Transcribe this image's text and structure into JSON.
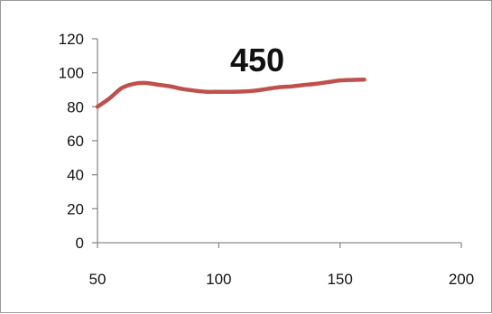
{
  "chart_data": {
    "type": "line",
    "title": "450",
    "xlabel": "",
    "ylabel": "",
    "xlim": [
      50,
      200
    ],
    "ylim": [
      0,
      120
    ],
    "xticks": [
      50,
      100,
      150,
      200
    ],
    "yticks": [
      0,
      20,
      40,
      60,
      80,
      100,
      120
    ],
    "grid": false,
    "legend": "none",
    "series": [
      {
        "color": "#c0504d",
        "x": [
          50,
          55,
          60,
          65,
          70,
          75,
          80,
          85,
          90,
          95,
          100,
          105,
          110,
          115,
          120,
          125,
          130,
          135,
          140,
          145,
          150,
          155,
          160
        ],
        "y": [
          80,
          85,
          91,
          93.5,
          94,
          93,
          92,
          90.5,
          89.5,
          88.8,
          88.8,
          88.8,
          89,
          89.5,
          90.5,
          91.5,
          92,
          92.8,
          93.5,
          94.5,
          95.5,
          95.8,
          96
        ]
      }
    ]
  }
}
